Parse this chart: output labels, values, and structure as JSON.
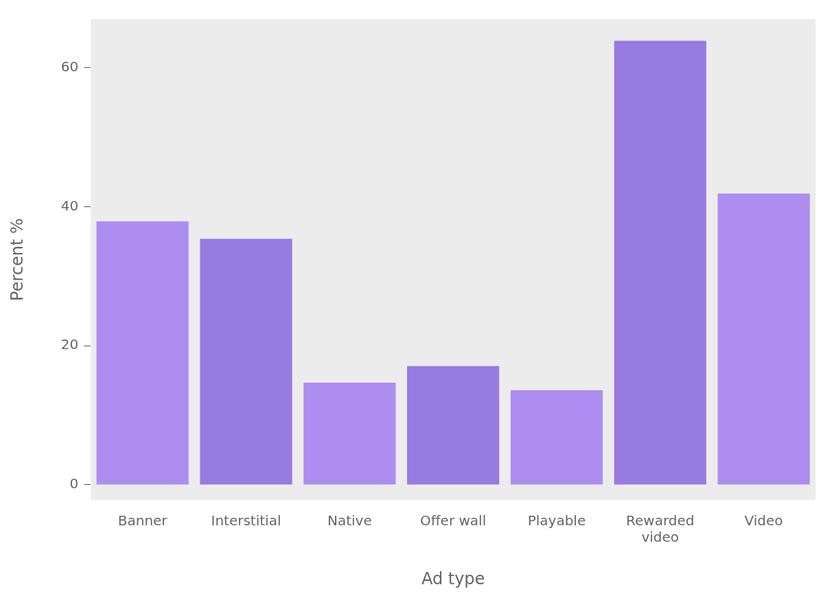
{
  "chart_data": {
    "type": "bar",
    "xlabel": "Ad type",
    "ylabel": "Percent %",
    "categories": [
      "Banner",
      "Interstitial",
      "Native",
      "Offer wall",
      "Playable",
      "Rewarded video",
      "Video"
    ],
    "values": [
      37.9,
      35.4,
      14.7,
      17.1,
      13.6,
      63.9,
      41.9
    ],
    "colors": [
      "#ad8ef0",
      "#987be0",
      "#ad8ef0",
      "#987be0",
      "#ad8ef0",
      "#987be0",
      "#ad8ef0"
    ],
    "ylim": [
      -2.2,
      67
    ],
    "yticks": [
      0,
      20,
      40,
      60
    ],
    "grid": false,
    "legend": false
  }
}
